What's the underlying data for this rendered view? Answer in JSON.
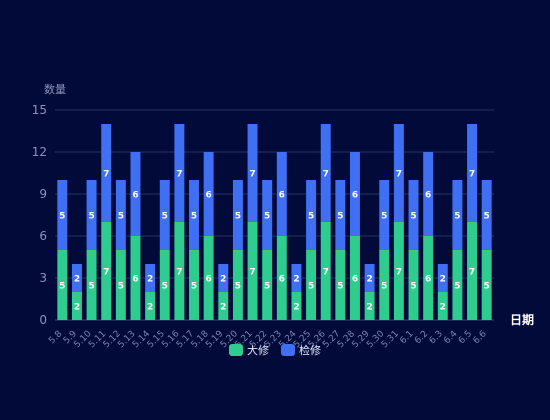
{
  "chart_data": {
    "type": "bar",
    "stacked": true,
    "ylabel": "数量",
    "xlabel": "日期",
    "ylim": [
      0,
      15
    ],
    "yticks": [
      0,
      3,
      6,
      9,
      12,
      15
    ],
    "categories": [
      "5.8",
      "5.9",
      "5.10",
      "5.11",
      "5.12",
      "5.13",
      "5.14",
      "5.15",
      "5.16",
      "5.17",
      "5.18",
      "5.19",
      "5.20",
      "5.21",
      "5.22",
      "5.23",
      "5.24",
      "5.25",
      "5.26",
      "5.27",
      "5.28",
      "5.29",
      "5.30",
      "5.31",
      "6.1",
      "6.2",
      "6.3",
      "6.4",
      "6.5",
      "6.6"
    ],
    "series": [
      {
        "name": "大修",
        "color": "#2ECC8F",
        "values": [
          5,
          2,
          5,
          7,
          5,
          6,
          2,
          5,
          7,
          5,
          6,
          2,
          5,
          7,
          5,
          6,
          2,
          5,
          7,
          5,
          6,
          2,
          5,
          7,
          5,
          6,
          2,
          5,
          7,
          5
        ]
      },
      {
        "name": "检修",
        "color": "#3F6FF2",
        "values": [
          5,
          2,
          5,
          7,
          5,
          6,
          2,
          5,
          7,
          5,
          6,
          2,
          5,
          7,
          5,
          6,
          2,
          5,
          7,
          5,
          6,
          2,
          5,
          7,
          5,
          6,
          2,
          5,
          7,
          5
        ]
      }
    ],
    "grid": true,
    "legend_position": "bottom-center"
  }
}
